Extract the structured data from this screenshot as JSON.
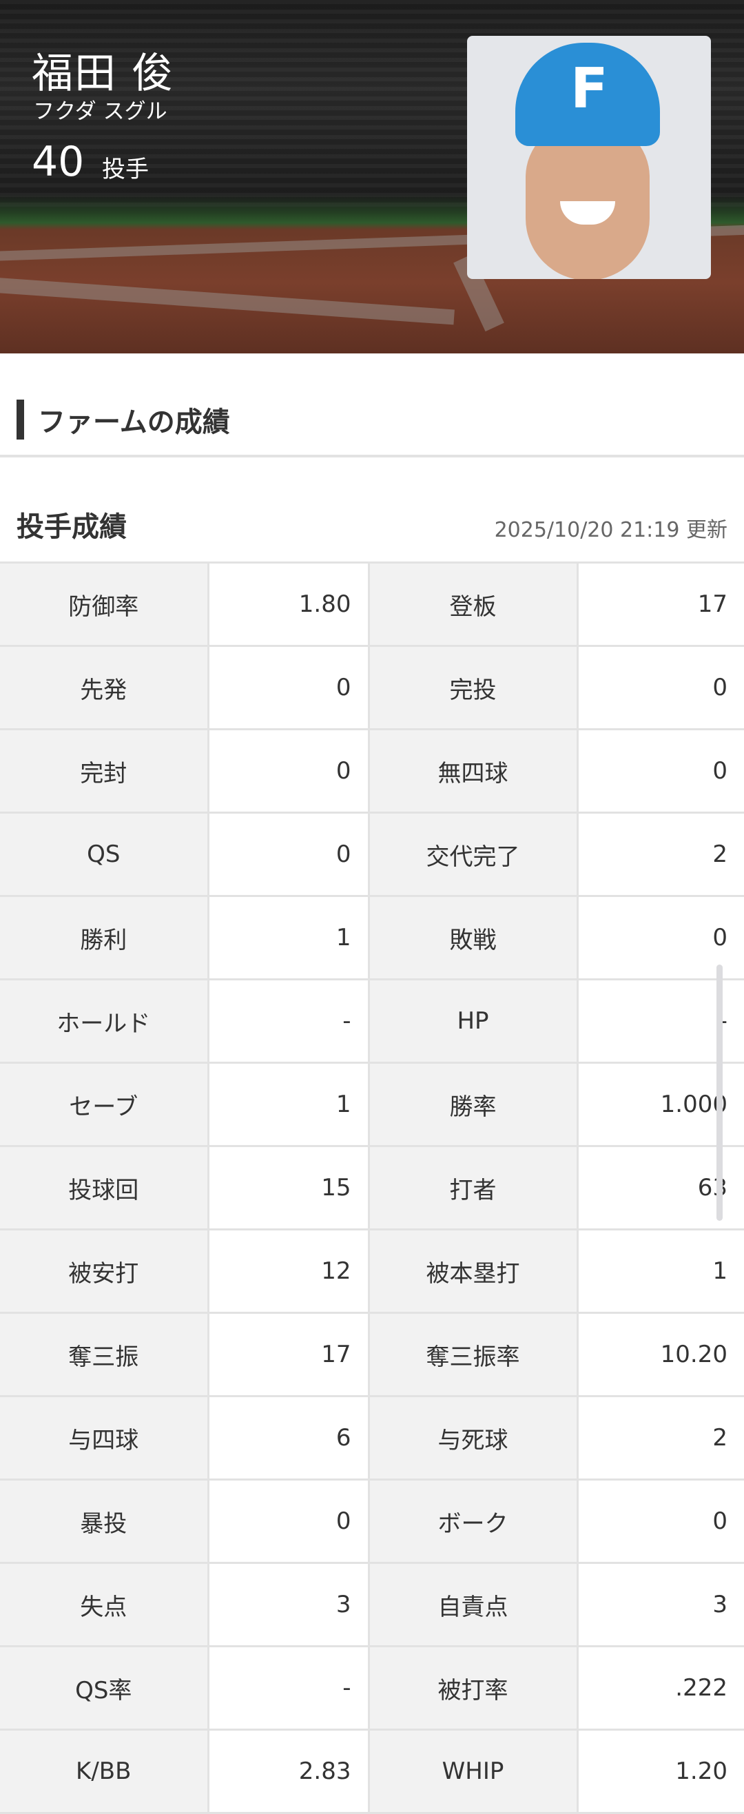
{
  "player": {
    "name": "福田 俊",
    "kana": "フクダ スグル",
    "number": "40",
    "position": "投手"
  },
  "section_title": "ファームの成績",
  "stats": {
    "title": "投手成績",
    "updated": "2025/10/20 21:19 更新",
    "rows": [
      [
        {
          "label": "防御率",
          "value": "1.80"
        },
        {
          "label": "登板",
          "value": "17"
        }
      ],
      [
        {
          "label": "先発",
          "value": "0"
        },
        {
          "label": "完投",
          "value": "0"
        }
      ],
      [
        {
          "label": "完封",
          "value": "0"
        },
        {
          "label": "無四球",
          "value": "0"
        }
      ],
      [
        {
          "label": "QS",
          "value": "0"
        },
        {
          "label": "交代完了",
          "value": "2"
        }
      ],
      [
        {
          "label": "勝利",
          "value": "1"
        },
        {
          "label": "敗戦",
          "value": "0"
        }
      ],
      [
        {
          "label": "ホールド",
          "value": "-"
        },
        {
          "label": "HP",
          "value": "-"
        }
      ],
      [
        {
          "label": "セーブ",
          "value": "1"
        },
        {
          "label": "勝率",
          "value": "1.000"
        }
      ],
      [
        {
          "label": "投球回",
          "value": "15"
        },
        {
          "label": "打者",
          "value": "63"
        }
      ],
      [
        {
          "label": "被安打",
          "value": "12"
        },
        {
          "label": "被本塁打",
          "value": "1"
        }
      ],
      [
        {
          "label": "奪三振",
          "value": "17"
        },
        {
          "label": "奪三振率",
          "value": "10.20"
        }
      ],
      [
        {
          "label": "与四球",
          "value": "6"
        },
        {
          "label": "与死球",
          "value": "2"
        }
      ],
      [
        {
          "label": "暴投",
          "value": "0"
        },
        {
          "label": "ボーク",
          "value": "0"
        }
      ],
      [
        {
          "label": "失点",
          "value": "3"
        },
        {
          "label": "自責点",
          "value": "3"
        }
      ],
      [
        {
          "label": "QS率",
          "value": "-"
        },
        {
          "label": "被打率",
          "value": ".222"
        }
      ],
      [
        {
          "label": "K/BB",
          "value": "2.83"
        },
        {
          "label": "WHIP",
          "value": "1.20"
        }
      ]
    ]
  }
}
